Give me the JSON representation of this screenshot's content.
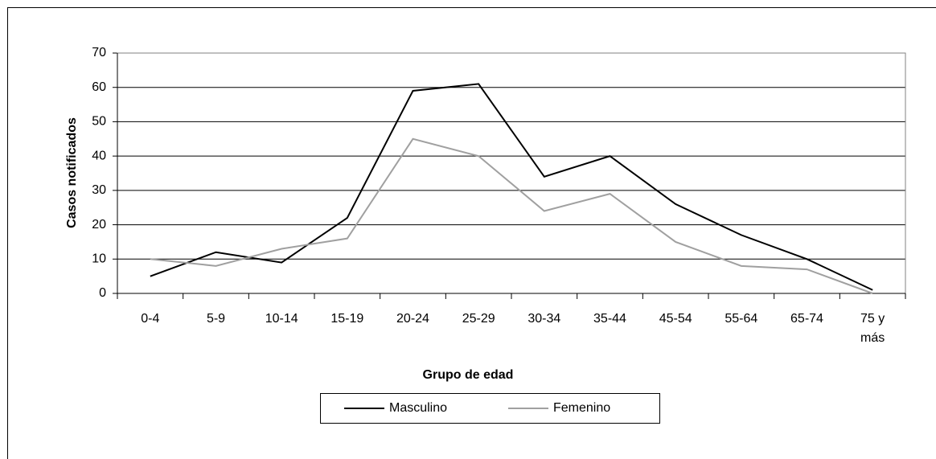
{
  "chart_data": {
    "type": "line",
    "categories": [
      "0-4",
      "5-9",
      "10-14",
      "15-19",
      "20-24",
      "25-29",
      "30-34",
      "35-44",
      "45-54",
      "55-64",
      "65-74",
      "75 y más"
    ],
    "series": [
      {
        "name": "Masculino",
        "color": "#000000",
        "values": [
          5,
          12,
          9,
          22,
          59,
          61,
          34,
          40,
          26,
          17,
          10,
          1
        ]
      },
      {
        "name": "Femenino",
        "color": "#a0a0a0",
        "values": [
          10,
          8,
          13,
          16,
          45,
          40,
          24,
          29,
          15,
          8,
          7,
          0
        ]
      }
    ],
    "xlabel": "Grupo de edad",
    "ylabel": "Casos notificados",
    "ylim": [
      0,
      70
    ],
    "yticks": [
      0,
      10,
      20,
      30,
      40,
      50,
      60,
      70
    ],
    "grid": true,
    "legend": "bottom"
  }
}
